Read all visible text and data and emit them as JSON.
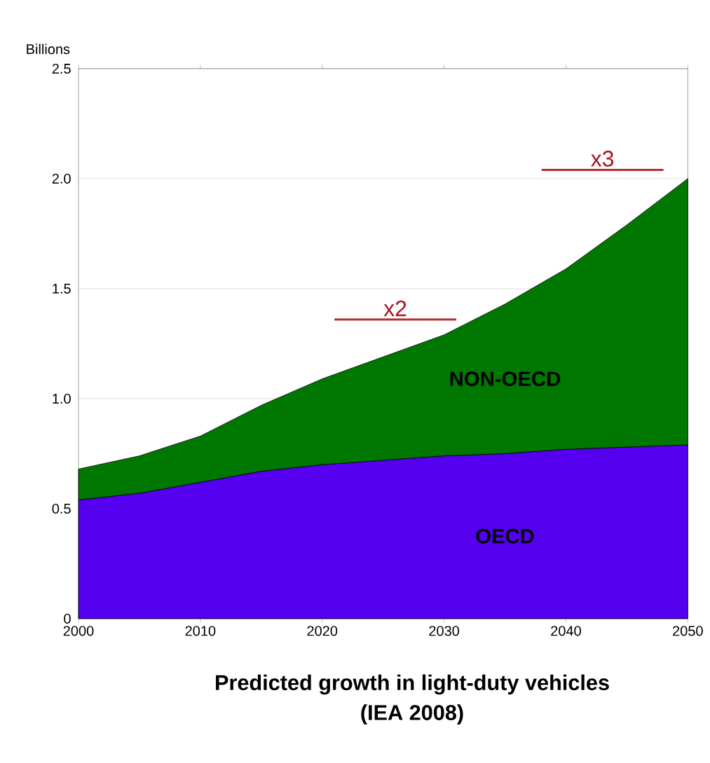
{
  "chart_data": {
    "type": "area",
    "title": "Predicted growth in light-duty vehicles",
    "subtitle": "(IEA 2008)",
    "ylabel": "Billions",
    "stacked": true,
    "x": [
      2000,
      2005,
      2010,
      2015,
      2020,
      2025,
      2030,
      2035,
      2040,
      2045,
      2050
    ],
    "series": [
      {
        "name": "OECD",
        "color": "#5500ee",
        "values": [
          0.54,
          0.57,
          0.62,
          0.67,
          0.7,
          0.72,
          0.74,
          0.75,
          0.77,
          0.78,
          0.79
        ]
      },
      {
        "name": "NON-OECD",
        "color": "#007700",
        "values": [
          0.14,
          0.17,
          0.21,
          0.3,
          0.39,
          0.47,
          0.55,
          0.68,
          0.82,
          1.01,
          1.21
        ]
      },
      {
        "type": "line",
        "color": "#be2832",
        "x": [
          2021,
          2031
        ],
        "values": [
          1.36,
          1.36
        ]
      },
      {
        "type": "line",
        "color": "#be2832",
        "x": [
          2038,
          2048
        ],
        "values": [
          2.04,
          2.04
        ]
      }
    ],
    "xlim": [
      2000,
      2050
    ],
    "xticks": [
      2000,
      2010,
      2020,
      2030,
      2040,
      2050
    ],
    "ylim": [
      0,
      2.5
    ],
    "yticks": [
      0,
      0.5,
      {
        "value": 1,
        "label": "1.0"
      },
      1.5,
      {
        "value": 2,
        "label": "2.0"
      },
      2.5
    ],
    "grid": "y",
    "legend": false,
    "annotations": [
      {
        "text": "x2",
        "x": 2026,
        "y": 1.36
      },
      {
        "text": "x3",
        "x": 2043,
        "y": 2.04
      }
    ]
  }
}
